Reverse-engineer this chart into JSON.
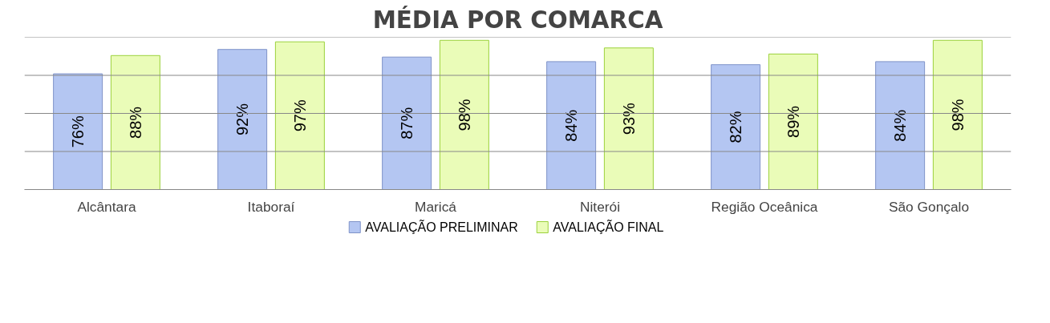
{
  "chart_data": {
    "type": "bar",
    "title": "MÉDIA POR COMARCA",
    "categories": [
      "Alcântara",
      "Itaboraí",
      "Maricá",
      "Niterói",
      "Região Oceânica",
      "São Gonçalo"
    ],
    "series": [
      {
        "name": "AVALIAÇÃO PRELIMINAR",
        "color": "#b4c6f2",
        "values": [
          76,
          92,
          87,
          84,
          82,
          84
        ],
        "value_labels": [
          "76%",
          "92%",
          "87%",
          "84%",
          "82%",
          "84%"
        ]
      },
      {
        "name": "AVALIAÇÃO FINAL",
        "color": "#eafcb8",
        "values": [
          88,
          97,
          98,
          93,
          89,
          98
        ],
        "value_labels": [
          "88%",
          "97%",
          "98%",
          "93%",
          "89%",
          "98%"
        ]
      }
    ],
    "ylim": [
      0,
      100
    ],
    "yticks": [
      {
        "value": 0,
        "label": null
      },
      {
        "value": 25,
        "label": null
      },
      {
        "value": 50,
        "label": null
      },
      {
        "value": 75,
        "label": null
      },
      {
        "value": 100,
        "label": null
      }
    ],
    "tick_labels": "x",
    "grid": "y",
    "legend": "bottom"
  }
}
